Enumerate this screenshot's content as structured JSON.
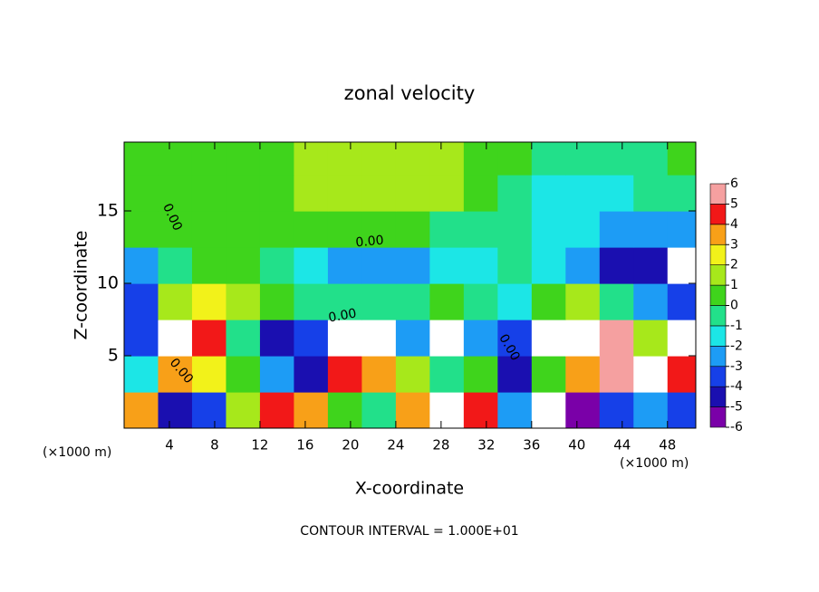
{
  "chart_data": {
    "type": "contour",
    "title": "zonal velocity",
    "xlabel": "X-coordinate",
    "ylabel": "Z-coordinate",
    "x_unit": "(×1000 m)",
    "footer": "CONTOUR INTERVAL = 1.000E+01",
    "xlim": [
      0,
      50.5
    ],
    "ylim": [
      0,
      19.75
    ],
    "xticks": [
      4,
      8,
      12,
      16,
      20,
      24,
      28,
      32,
      36,
      40,
      44,
      48
    ],
    "yticks": [
      5,
      10,
      15
    ],
    "x": [
      1.5,
      4.5,
      7.5,
      10.5,
      13.5,
      16.5,
      19.5,
      22.5,
      25.5,
      28.5,
      31.5,
      34.5,
      37.5,
      40.5,
      43.5,
      46.5,
      49.5
    ],
    "y": [
      1.25,
      3.75,
      6.25,
      8.75,
      11.25,
      13.75,
      16.25,
      18.75
    ],
    "z": [
      [
        3,
        -5,
        -4,
        1,
        4,
        3,
        0,
        -1,
        3,
        7,
        4,
        -3,
        -7,
        -6,
        -4,
        -3,
        -4
      ],
      [
        -2,
        3,
        2,
        0,
        -3,
        -5,
        4,
        3,
        1,
        -1,
        0,
        -5,
        0,
        3,
        6,
        9,
        4
      ],
      [
        -4,
        7,
        4,
        -1,
        -5,
        -4,
        7,
        7,
        -3,
        8,
        -3,
        -4,
        7,
        9,
        6,
        1,
        -7
      ],
      [
        -4,
        1,
        2,
        1,
        0,
        -1,
        -1,
        -1,
        -1,
        0,
        -1,
        -2,
        0,
        1,
        -1,
        -3,
        -4
      ],
      [
        -3,
        -1,
        0,
        0,
        -1,
        -2,
        -3,
        -3,
        -3,
        -2,
        -2,
        -1,
        -2,
        -3,
        -5,
        -5,
        -8
      ],
      [
        0,
        0,
        0,
        0,
        0,
        0,
        0.5,
        0.5,
        0,
        -1,
        -1,
        -1,
        -2,
        -2,
        -3,
        -3,
        -3
      ],
      [
        0,
        0.5,
        0.5,
        0.5,
        0,
        1,
        1,
        1,
        1,
        1,
        0.5,
        -1,
        -2,
        -2,
        -2,
        -1,
        -1
      ],
      [
        0,
        0.5,
        0.5,
        0.5,
        0,
        1,
        1,
        1,
        1,
        1,
        0.5,
        0,
        -1,
        -1,
        -1,
        -1,
        0
      ]
    ],
    "colorbar": {
      "ticks": [
        -6,
        -5,
        -4,
        -3,
        -2,
        -1,
        0,
        1,
        2,
        3,
        4,
        5,
        6
      ],
      "colors": [
        "#7a00a8",
        "#1a0fb0",
        "#1640e8",
        "#1d9cf5",
        "#1ce6e6",
        "#22e08a",
        "#3fd41c",
        "#a7e81b",
        "#f2f21a",
        "#f8a018",
        "#f21818",
        "#f5a0a0"
      ]
    },
    "contour_labels": [
      "0.00",
      "0.00",
      "0.00",
      "0.00",
      "0.00"
    ]
  }
}
